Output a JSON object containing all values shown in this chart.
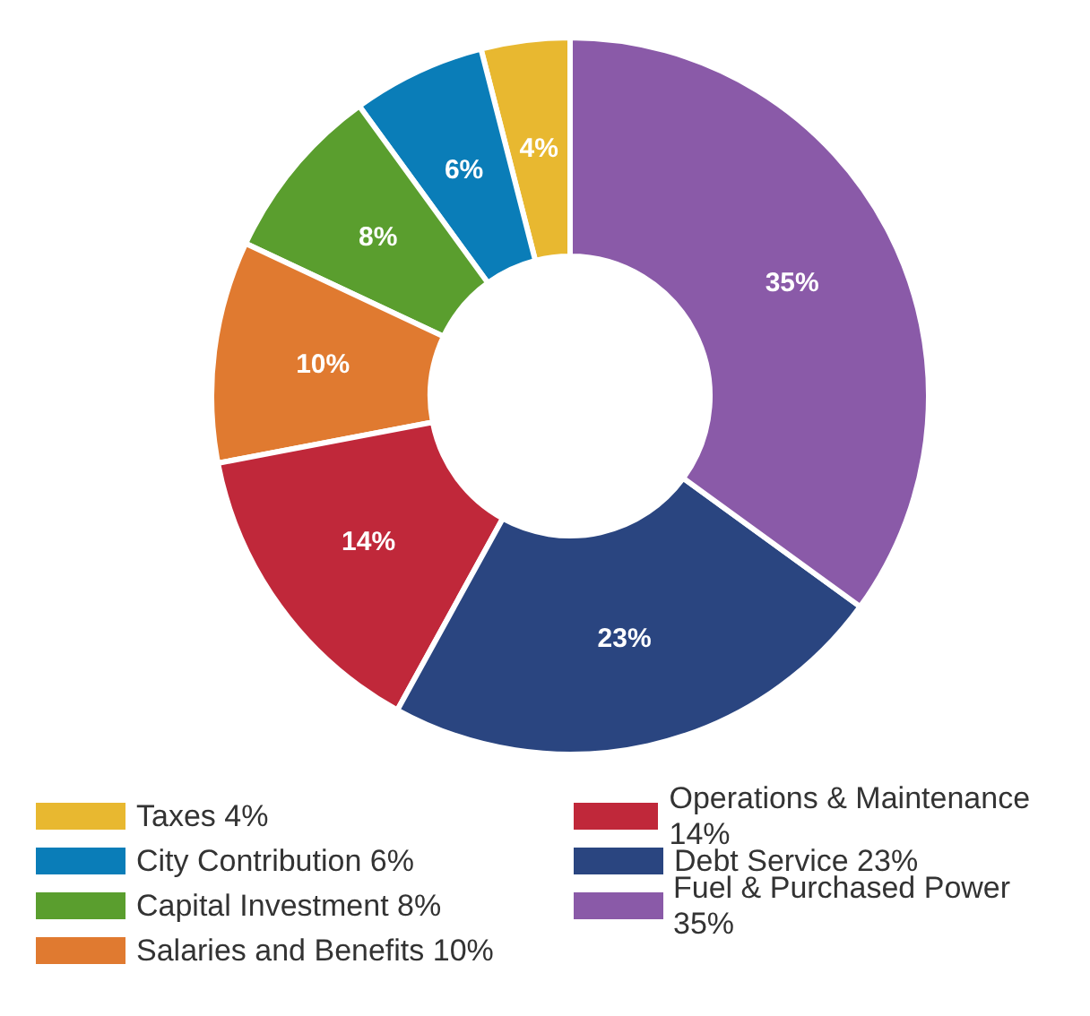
{
  "chart_data": {
    "type": "donut",
    "categories": [
      "Taxes",
      "City Contribution",
      "Capital Investment",
      "Salaries and Benefits",
      "Operations & Maintenance",
      "Debt Service",
      "Fuel & Purchased Power"
    ],
    "values": [
      4,
      6,
      8,
      10,
      14,
      23,
      35
    ],
    "value_labels": [
      "4%",
      "6%",
      "8%",
      "10%",
      "14%",
      "23%",
      "35%"
    ],
    "colors": [
      "#e8b830",
      "#0a7db8",
      "#5a9e2e",
      "#e07a30",
      "#c0283a",
      "#2a4580",
      "#8a5aa8"
    ],
    "legend": "bottom"
  }
}
